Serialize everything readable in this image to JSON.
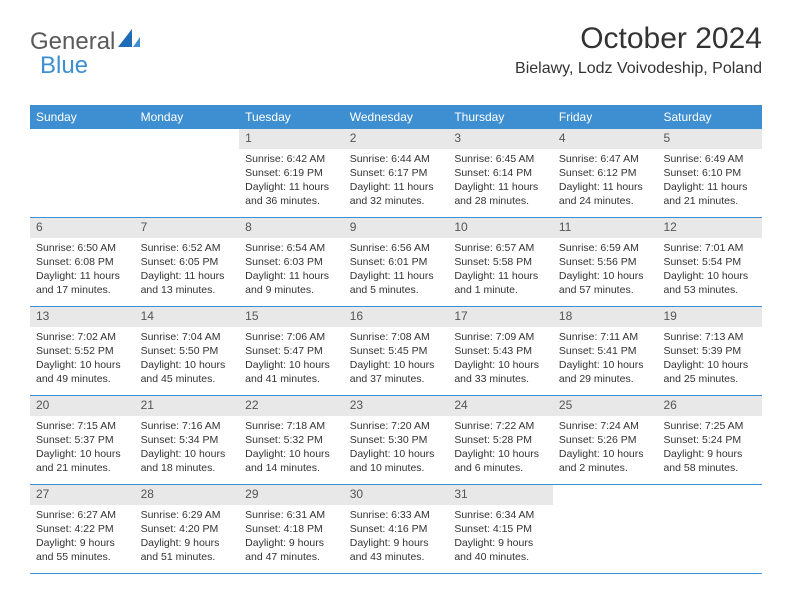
{
  "logo": {
    "part1": "General",
    "part2": "Blue"
  },
  "title": "October 2024",
  "location": "Bielawy, Lodz Voivodeship, Poland",
  "colors": {
    "header_bg": "#3d8fd1",
    "header_text": "#ffffff",
    "day_number_bg": "#e8e8e8",
    "body_text": "#333333",
    "logo_gray": "#5a5a5a",
    "logo_blue": "#3d8fd1",
    "row_border": "#3d8fd1",
    "page_bg": "#ffffff"
  },
  "day_names": [
    "Sunday",
    "Monday",
    "Tuesday",
    "Wednesday",
    "Thursday",
    "Friday",
    "Saturday"
  ],
  "weeks": [
    [
      {
        "num": "",
        "sunrise": "",
        "sunset": "",
        "daylight": ""
      },
      {
        "num": "",
        "sunrise": "",
        "sunset": "",
        "daylight": ""
      },
      {
        "num": "1",
        "sunrise": "Sunrise: 6:42 AM",
        "sunset": "Sunset: 6:19 PM",
        "daylight": "Daylight: 11 hours and 36 minutes."
      },
      {
        "num": "2",
        "sunrise": "Sunrise: 6:44 AM",
        "sunset": "Sunset: 6:17 PM",
        "daylight": "Daylight: 11 hours and 32 minutes."
      },
      {
        "num": "3",
        "sunrise": "Sunrise: 6:45 AM",
        "sunset": "Sunset: 6:14 PM",
        "daylight": "Daylight: 11 hours and 28 minutes."
      },
      {
        "num": "4",
        "sunrise": "Sunrise: 6:47 AM",
        "sunset": "Sunset: 6:12 PM",
        "daylight": "Daylight: 11 hours and 24 minutes."
      },
      {
        "num": "5",
        "sunrise": "Sunrise: 6:49 AM",
        "sunset": "Sunset: 6:10 PM",
        "daylight": "Daylight: 11 hours and 21 minutes."
      }
    ],
    [
      {
        "num": "6",
        "sunrise": "Sunrise: 6:50 AM",
        "sunset": "Sunset: 6:08 PM",
        "daylight": "Daylight: 11 hours and 17 minutes."
      },
      {
        "num": "7",
        "sunrise": "Sunrise: 6:52 AM",
        "sunset": "Sunset: 6:05 PM",
        "daylight": "Daylight: 11 hours and 13 minutes."
      },
      {
        "num": "8",
        "sunrise": "Sunrise: 6:54 AM",
        "sunset": "Sunset: 6:03 PM",
        "daylight": "Daylight: 11 hours and 9 minutes."
      },
      {
        "num": "9",
        "sunrise": "Sunrise: 6:56 AM",
        "sunset": "Sunset: 6:01 PM",
        "daylight": "Daylight: 11 hours and 5 minutes."
      },
      {
        "num": "10",
        "sunrise": "Sunrise: 6:57 AM",
        "sunset": "Sunset: 5:58 PM",
        "daylight": "Daylight: 11 hours and 1 minute."
      },
      {
        "num": "11",
        "sunrise": "Sunrise: 6:59 AM",
        "sunset": "Sunset: 5:56 PM",
        "daylight": "Daylight: 10 hours and 57 minutes."
      },
      {
        "num": "12",
        "sunrise": "Sunrise: 7:01 AM",
        "sunset": "Sunset: 5:54 PM",
        "daylight": "Daylight: 10 hours and 53 minutes."
      }
    ],
    [
      {
        "num": "13",
        "sunrise": "Sunrise: 7:02 AM",
        "sunset": "Sunset: 5:52 PM",
        "daylight": "Daylight: 10 hours and 49 minutes."
      },
      {
        "num": "14",
        "sunrise": "Sunrise: 7:04 AM",
        "sunset": "Sunset: 5:50 PM",
        "daylight": "Daylight: 10 hours and 45 minutes."
      },
      {
        "num": "15",
        "sunrise": "Sunrise: 7:06 AM",
        "sunset": "Sunset: 5:47 PM",
        "daylight": "Daylight: 10 hours and 41 minutes."
      },
      {
        "num": "16",
        "sunrise": "Sunrise: 7:08 AM",
        "sunset": "Sunset: 5:45 PM",
        "daylight": "Daylight: 10 hours and 37 minutes."
      },
      {
        "num": "17",
        "sunrise": "Sunrise: 7:09 AM",
        "sunset": "Sunset: 5:43 PM",
        "daylight": "Daylight: 10 hours and 33 minutes."
      },
      {
        "num": "18",
        "sunrise": "Sunrise: 7:11 AM",
        "sunset": "Sunset: 5:41 PM",
        "daylight": "Daylight: 10 hours and 29 minutes."
      },
      {
        "num": "19",
        "sunrise": "Sunrise: 7:13 AM",
        "sunset": "Sunset: 5:39 PM",
        "daylight": "Daylight: 10 hours and 25 minutes."
      }
    ],
    [
      {
        "num": "20",
        "sunrise": "Sunrise: 7:15 AM",
        "sunset": "Sunset: 5:37 PM",
        "daylight": "Daylight: 10 hours and 21 minutes."
      },
      {
        "num": "21",
        "sunrise": "Sunrise: 7:16 AM",
        "sunset": "Sunset: 5:34 PM",
        "daylight": "Daylight: 10 hours and 18 minutes."
      },
      {
        "num": "22",
        "sunrise": "Sunrise: 7:18 AM",
        "sunset": "Sunset: 5:32 PM",
        "daylight": "Daylight: 10 hours and 14 minutes."
      },
      {
        "num": "23",
        "sunrise": "Sunrise: 7:20 AM",
        "sunset": "Sunset: 5:30 PM",
        "daylight": "Daylight: 10 hours and 10 minutes."
      },
      {
        "num": "24",
        "sunrise": "Sunrise: 7:22 AM",
        "sunset": "Sunset: 5:28 PM",
        "daylight": "Daylight: 10 hours and 6 minutes."
      },
      {
        "num": "25",
        "sunrise": "Sunrise: 7:24 AM",
        "sunset": "Sunset: 5:26 PM",
        "daylight": "Daylight: 10 hours and 2 minutes."
      },
      {
        "num": "26",
        "sunrise": "Sunrise: 7:25 AM",
        "sunset": "Sunset: 5:24 PM",
        "daylight": "Daylight: 9 hours and 58 minutes."
      }
    ],
    [
      {
        "num": "27",
        "sunrise": "Sunrise: 6:27 AM",
        "sunset": "Sunset: 4:22 PM",
        "daylight": "Daylight: 9 hours and 55 minutes."
      },
      {
        "num": "28",
        "sunrise": "Sunrise: 6:29 AM",
        "sunset": "Sunset: 4:20 PM",
        "daylight": "Daylight: 9 hours and 51 minutes."
      },
      {
        "num": "29",
        "sunrise": "Sunrise: 6:31 AM",
        "sunset": "Sunset: 4:18 PM",
        "daylight": "Daylight: 9 hours and 47 minutes."
      },
      {
        "num": "30",
        "sunrise": "Sunrise: 6:33 AM",
        "sunset": "Sunset: 4:16 PM",
        "daylight": "Daylight: 9 hours and 43 minutes."
      },
      {
        "num": "31",
        "sunrise": "Sunrise: 6:34 AM",
        "sunset": "Sunset: 4:15 PM",
        "daylight": "Daylight: 9 hours and 40 minutes."
      },
      {
        "num": "",
        "sunrise": "",
        "sunset": "",
        "daylight": ""
      },
      {
        "num": "",
        "sunrise": "",
        "sunset": "",
        "daylight": ""
      }
    ]
  ]
}
